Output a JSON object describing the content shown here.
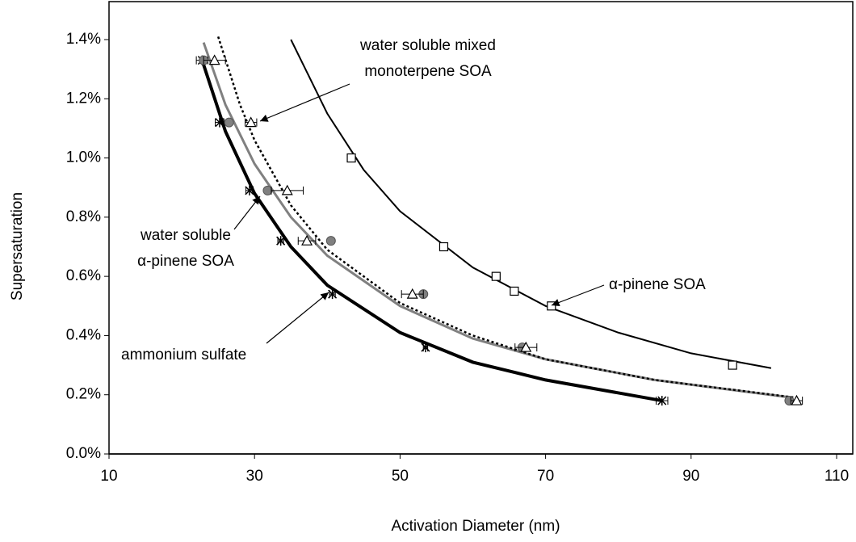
{
  "chart_data": {
    "type": "scatter",
    "x_label": "Activation Diameter (nm)",
    "y_label": "Supersaturation",
    "xlim": [
      10,
      110
    ],
    "xticks": [
      10,
      30,
      50,
      70,
      90,
      110
    ],
    "ylim": [
      0,
      1.4
    ],
    "yticks": [
      {
        "value": 0,
        "label": "0.0%"
      },
      {
        "value": 0.2,
        "label": "0.2%"
      },
      {
        "value": 0.4,
        "label": "0.4%"
      },
      {
        "value": 0.6,
        "label": "0.6%"
      },
      {
        "value": 0.8,
        "label": "0.8%"
      },
      {
        "value": 1.0,
        "label": "1.0%"
      },
      {
        "value": 1.2,
        "label": "1.2%"
      },
      {
        "value": 1.4,
        "label": "1.4%"
      }
    ],
    "grid": false,
    "series": [
      {
        "marker": "star",
        "color": "#000000",
        "line_style": "thick",
        "x": [
          22.8,
          25.2,
          29.3,
          33.6,
          40.7,
          53.5,
          86
        ],
        "values": [
          1.33,
          1.12,
          0.89,
          0.72,
          0.54,
          0.36,
          0.18
        ],
        "x_errors": [
          0.8,
          0.6,
          0.5,
          0.4,
          0.4,
          0.3,
          0.8
        ],
        "fit_x": [
          22.8,
          26,
          30,
          35,
          40,
          50,
          60,
          70,
          86
        ],
        "fit_values": [
          1.33,
          1.09,
          0.88,
          0.7,
          0.57,
          0.41,
          0.31,
          0.25,
          0.18
        ]
      },
      {
        "marker": "circle",
        "color": "#808080",
        "line_style": "solid",
        "x": [
          23,
          26.5,
          31.8,
          40.5,
          53.2,
          66.8,
          103.5
        ],
        "values": [
          1.33,
          1.12,
          0.89,
          0.72,
          0.54,
          0.36,
          0.18
        ],
        "fit_x": [
          23,
          26,
          30,
          35,
          40,
          50,
          60,
          70,
          85,
          104
        ],
        "fit_values": [
          1.39,
          1.18,
          0.98,
          0.8,
          0.67,
          0.5,
          0.39,
          0.32,
          0.25,
          0.19
        ]
      },
      {
        "marker": "triangle",
        "color": "#000000",
        "line_style": "dotted",
        "x": [
          24.5,
          29.5,
          34.5,
          37.2,
          51.7,
          67.3,
          104.5
        ],
        "values": [
          1.33,
          1.12,
          0.89,
          0.72,
          0.54,
          0.36,
          0.18
        ],
        "x_errors": [
          1.5,
          0.8,
          2.2,
          1.2,
          1.5,
          1.5,
          0.8
        ],
        "fit_x": [
          25,
          28,
          30,
          35,
          40,
          50,
          60,
          70,
          85,
          104.5
        ],
        "fit_values": [
          1.41,
          1.18,
          1.06,
          0.84,
          0.69,
          0.51,
          0.4,
          0.32,
          0.25,
          0.19
        ]
      },
      {
        "marker": "square",
        "color": "#000000",
        "line_style": "thin",
        "x": [
          43.3,
          56,
          63.2,
          65.7,
          70.8,
          95.7
        ],
        "values": [
          1.0,
          0.7,
          0.6,
          0.55,
          0.5,
          0.3
        ],
        "fit_x": [
          35,
          40,
          45,
          50,
          60,
          70,
          80,
          90,
          101
        ],
        "fit_values": [
          1.4,
          1.15,
          0.96,
          0.82,
          0.63,
          0.5,
          0.41,
          0.34,
          0.29
        ]
      }
    ],
    "annotations": [
      {
        "lines": [
          "water soluble mixed",
          "monoterpene SOA"
        ]
      },
      {
        "lines": [
          "α-pinene SOA"
        ]
      },
      {
        "lines": [
          "water soluble",
          "α-pinene SOA"
        ]
      },
      {
        "lines": [
          "ammonium sulfate"
        ]
      }
    ]
  }
}
